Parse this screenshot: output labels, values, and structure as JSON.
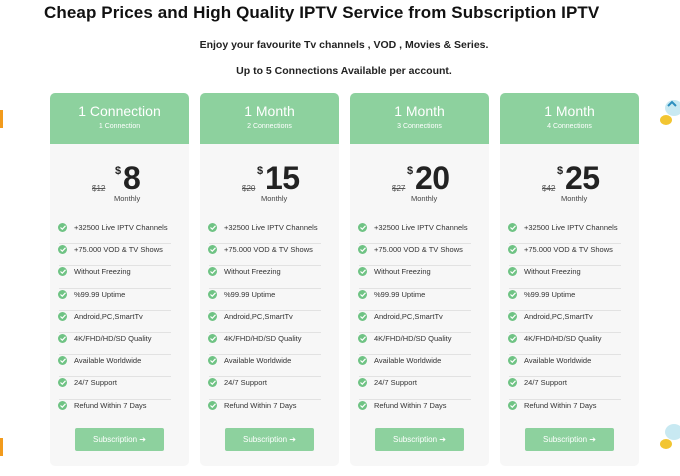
{
  "page": {
    "title": "Cheap Prices and High Quality IPTV Service from Subscription IPTV",
    "subtitle1": "Enjoy your favourite Tv channels , VOD , Movies & Series.",
    "subtitle2": "Up to 5 Connections Available per account."
  },
  "colors": {
    "accent": "#8dd19e",
    "check": "#6fc384",
    "edge_mark": "#f29b1d",
    "card_bg": "#f7f7f7"
  },
  "plans": [
    {
      "name": "1 Connection",
      "connections": "1 Connection",
      "currency": "$",
      "price": "8",
      "old_price": "$12",
      "period": "Monthly",
      "button": "Subscription ➔",
      "features": [
        "+32500 Live IPTV Channels",
        "+75.000 VOD & TV Shows",
        "Without Freezing",
        "%99.99 Uptime",
        "Android,PC,SmartTv",
        "4K/FHD/HD/SD Quality",
        "Available Worldwide",
        "24/7 Support",
        "Refund Within 7 Days"
      ]
    },
    {
      "name": "1 Month",
      "connections": "2 Connections",
      "currency": "$",
      "price": "15",
      "old_price": "$20",
      "period": "Monthly",
      "button": "Subscription ➔",
      "features": [
        "+32500 Live IPTV Channels",
        "+75.000 VOD & TV Shows",
        "Without Freezing",
        "%99.99 Uptime",
        "Android,PC,SmartTv",
        "4K/FHD/HD/SD Quality",
        "Available Worldwide",
        "24/7 Support",
        "Refund Within 7 Days"
      ]
    },
    {
      "name": "1 Month",
      "connections": "3 Connections",
      "currency": "$",
      "price": "20",
      "old_price": "$27",
      "period": "Monthly",
      "button": "Subscription ➔",
      "features": [
        "+32500 Live IPTV Channels",
        "+75.000 VOD & TV Shows",
        "Without Freezing",
        "%99.99 Uptime",
        "Android,PC,SmartTv",
        "4K/FHD/HD/SD Quality",
        "Available Worldwide",
        "24/7 Support",
        "Refund Within 7 Days"
      ]
    },
    {
      "name": "1 Month",
      "connections": "4 Connections",
      "currency": "$",
      "price": "25",
      "old_price": "$42",
      "period": "Monthly",
      "button": "Subscription ➔",
      "features": [
        "+32500 Live IPTV Channels",
        "+75.000 VOD & TV Shows",
        "Without Freezing",
        "%99.99 Uptime",
        "Android,PC,SmartTv",
        "4K/FHD/HD/SD Quality",
        "Available Worldwide",
        "24/7 Support",
        "Refund Within 7 Days"
      ]
    }
  ]
}
